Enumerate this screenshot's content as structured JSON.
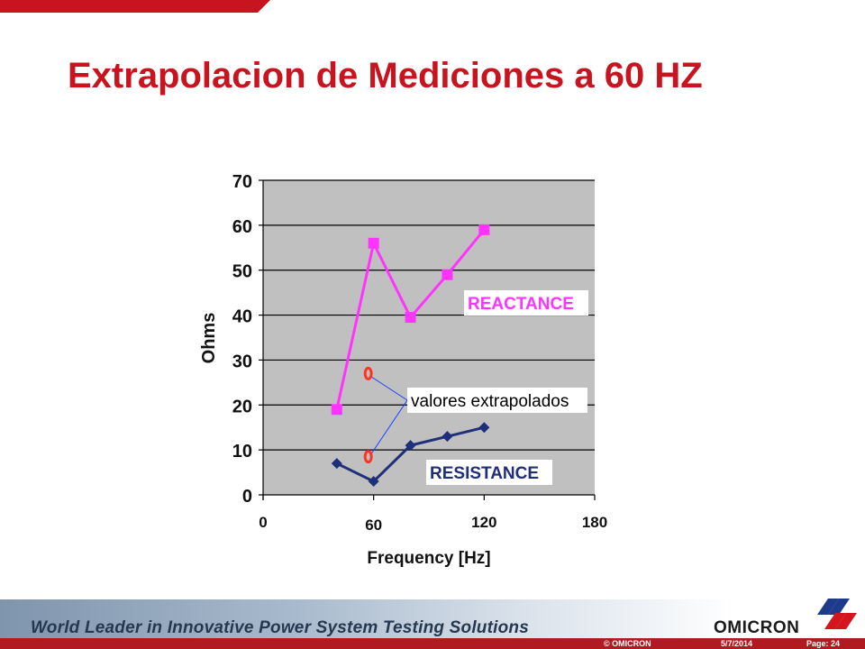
{
  "title": "Extrapolacion de Mediciones a 60 HZ",
  "chart_data": {
    "type": "line",
    "xlabel": "Frequency [Hz]",
    "ylabel": "Ohms",
    "xlim": [
      0,
      180
    ],
    "ylim": [
      0,
      70
    ],
    "yticks": [
      0,
      10,
      20,
      30,
      40,
      50,
      60,
      70
    ],
    "xtick_labels": [
      {
        "value": 0,
        "label": "0"
      },
      {
        "value": 60,
        "label": "60"
      },
      {
        "value": 120,
        "label": "120"
      },
      {
        "value": 180,
        "label": "180"
      }
    ],
    "grid": "horizontal",
    "series": [
      {
        "name": "REACTANCE",
        "color": "#ff33ff",
        "marker": "square",
        "x": [
          40,
          60,
          80,
          100,
          120
        ],
        "y": [
          19,
          56,
          39.5,
          49,
          59
        ]
      },
      {
        "name": "RESISTANCE",
        "color": "#1f2f7a",
        "marker": "diamond",
        "x": [
          40,
          60,
          80,
          100,
          120
        ],
        "y": [
          7,
          3,
          11,
          13,
          15
        ]
      }
    ],
    "extrapolated_points": {
      "color": "#ff3322",
      "x": [
        60,
        60
      ],
      "y": [
        27,
        8.5
      ]
    },
    "annotation": "valores extrapolados"
  },
  "footer": {
    "tagline": "World Leader in Innovative Power System Testing Solutions",
    "brand": "OMICRON",
    "copyright": "© OMICRON",
    "date": "5/7/2014",
    "page": "Page: 24"
  }
}
